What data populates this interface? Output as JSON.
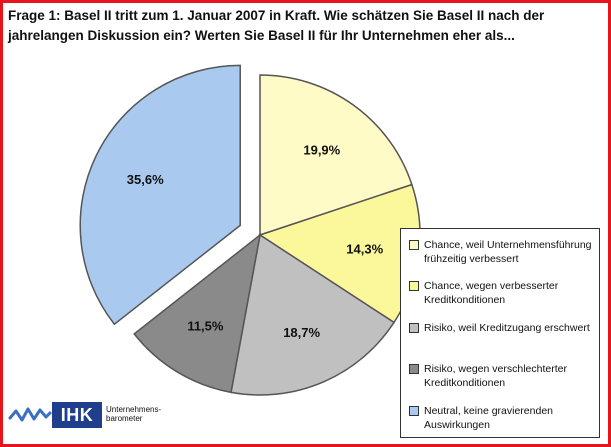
{
  "title_line1": "Frage 1: Basel II tritt zum 1. Januar 2007 in Kraft. Wie schätzen Sie Basel II nach der",
  "title_line2": "jahrelangen Diskussion ein? Werten Sie Basel II für Ihr Unternehmen eher als...",
  "logo": {
    "name": "IHK",
    "subtitle_line1": "Unternehmens-",
    "subtitle_line2": "barometer"
  },
  "colors": {
    "frame": "#e8141b",
    "slice_outline": "#555555"
  },
  "chart_data": {
    "type": "pie",
    "title": "Frage 1: Basel II tritt zum 1. Januar 2007 in Kraft. Wie schätzen Sie Basel II nach der jahrelangen Diskussion ein? Werten Sie Basel II für Ihr Unternehmen eher als...",
    "legend_position": "right",
    "slices": [
      {
        "label": "Chance, weil Unternehmensführung frühzeitig verbessert",
        "legend_line1": "Chance, weil Unternehmensführung",
        "legend_line2": "frühzeitig verbessert",
        "value": 19.9,
        "value_label": "19,9%",
        "color": "#fefbc6",
        "exploded": false
      },
      {
        "label": "Chance, wegen verbesserter Kreditkonditionen",
        "legend_line1": "Chance, wegen verbesserter",
        "legend_line2": "Kreditkonditionen",
        "value": 14.3,
        "value_label": "14,3%",
        "color": "#fbf89c",
        "exploded": false
      },
      {
        "label": "Risiko, weil Kreditzugang erschwert",
        "legend_line1": "Risiko, weil Kreditzugang erschwert",
        "legend_line2": "",
        "value": 18.7,
        "value_label": "18,7%",
        "color": "#c0c0c0",
        "exploded": false
      },
      {
        "label": "Risiko, wegen verschlechterter Kreditkonditionen",
        "legend_line1": "Risiko, wegen verschlechterter",
        "legend_line2": "Kreditkonditionen",
        "value": 11.5,
        "value_label": "11,5%",
        "color": "#8a8a8a",
        "exploded": false
      },
      {
        "label": "Neutral, keine gravierenden Auswirkungen",
        "legend_line1": "Neutral, keine gravierenden",
        "legend_line2": "Auswirkungen",
        "value": 35.6,
        "value_label": "35,6%",
        "color": "#a9c9ef",
        "exploded": true
      }
    ]
  }
}
